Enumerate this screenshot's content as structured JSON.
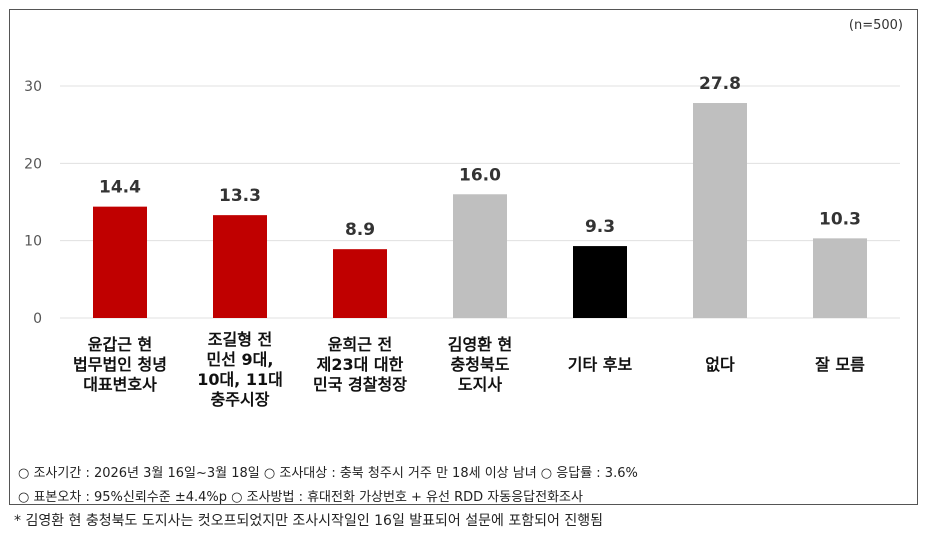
{
  "sample_size": "(n=500)",
  "chart_data": {
    "type": "bar",
    "categories": [
      "윤갑근 현\n법무법인 청녕\n대표변호사",
      "조길형 전\n민선 9대,\n10대, 11대\n충주시장",
      "윤희근 전\n제23대 대한\n민국 경찰청장",
      "김영환 현\n충청북도\n도지사",
      "기타 후보",
      "없다",
      "잘 모름"
    ],
    "values": [
      14.4,
      13.3,
      8.9,
      16.0,
      9.3,
      27.8,
      10.3
    ],
    "value_labels": [
      "14.4",
      "13.3",
      "8.9",
      "16.0",
      "9.3",
      "27.8",
      "10.3"
    ],
    "colors": [
      "#c00000",
      "#c00000",
      "#c00000",
      "#bfbfbf",
      "#000000",
      "#bfbfbf",
      "#bfbfbf"
    ],
    "ylim": [
      0,
      30
    ],
    "yticks": [
      0,
      10,
      20,
      30
    ],
    "grid": true,
    "title": "",
    "xlabel": "",
    "ylabel": ""
  },
  "notes": {
    "line1": "○ 조사기간 : 2026년 3월 16일~3월 18일 ○ 조사대상 : 충북 청주시 거주 만 18세 이상 남녀 ○ 응답률 : 3.6%",
    "line2": "○ 표본오차 : 95%신뢰수준 ±4.4%p ○ 조사방법 : 휴대전화 가상번호 + 유선 RDD 자동응답전화조사"
  },
  "footnote": "* 김영환 현 충청북도 도지사는 컷오프되었지만 조사시작일인 16일 발표되어 설문에 포함되어 진행됨"
}
